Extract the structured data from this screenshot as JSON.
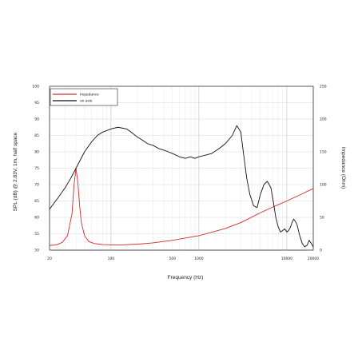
{
  "chart_data": {
    "type": "line",
    "xlabel": "Frequency (Hz)",
    "ylabel_left": "SPL (dB) @ 2.83V, 1m, half space",
    "ylabel_right": "Impedance (Ohm)",
    "x_scale": "log",
    "xlim": [
      20,
      20000
    ],
    "ylim_left": [
      50,
      100
    ],
    "ylim_right": [
      0,
      250
    ],
    "x_ticks": [
      {
        "value": 20,
        "label": "20"
      },
      {
        "value": 100,
        "label": "100"
      },
      {
        "value": 500,
        "label": "500"
      },
      {
        "value": 1000,
        "label": "1000"
      },
      {
        "value": 10000,
        "label": "10000"
      },
      {
        "value": 20000,
        "label": "20000"
      }
    ],
    "y_left_ticks": [
      "50",
      "55",
      "60",
      "65",
      "70",
      "75",
      "80",
      "85",
      "90",
      "95",
      "100"
    ],
    "y_right_ticks": [
      "0",
      "50",
      "100",
      "150",
      "200",
      "250"
    ],
    "grid": true,
    "legend_position": "top-left",
    "series_colors": {
      "impedance": "#d42a2a",
      "spl": "#111111"
    },
    "series": [
      {
        "name": "Impedance",
        "axis": "right",
        "x": [
          20,
          24,
          28,
          32,
          36,
          38,
          40,
          42,
          44,
          46,
          50,
          56,
          65,
          80,
          100,
          130,
          200,
          300,
          500,
          1000,
          2000,
          3000,
          5000,
          7000,
          10000,
          15000,
          20000
        ],
        "y": [
          7,
          8,
          12,
          22,
          55,
          100,
          125,
          103,
          68,
          42,
          22,
          13,
          10,
          8.5,
          8,
          8,
          9,
          11,
          15,
          22,
          33,
          42,
          57,
          66,
          75,
          86,
          94
        ]
      },
      {
        "name": "on axis",
        "axis": "left",
        "x": [
          20,
          22,
          25,
          30,
          35,
          40,
          50,
          60,
          70,
          80,
          90,
          100,
          120,
          150,
          170,
          200,
          230,
          260,
          300,
          350,
          400,
          450,
          500,
          600,
          700,
          800,
          900,
          1000,
          1200,
          1400,
          1700,
          2000,
          2400,
          2700,
          3000,
          3200,
          3500,
          3800,
          4200,
          4600,
          5000,
          5500,
          6000,
          6600,
          7000,
          7500,
          8000,
          8500,
          9000,
          9500,
          10000,
          10500,
          11000,
          11500,
          12000,
          13000,
          14000,
          15000,
          16000,
          17000,
          18000,
          19000,
          20000
        ],
        "y": [
          62.5,
          64,
          66,
          69,
          72,
          75,
          80,
          83,
          85,
          86,
          86.5,
          87,
          87.5,
          87,
          86,
          84.5,
          83.5,
          82.5,
          82,
          81,
          80.5,
          80,
          79.5,
          78.5,
          78,
          78.5,
          78,
          78.5,
          79,
          79.5,
          81,
          82.5,
          85,
          88,
          86,
          80,
          72,
          67,
          63.5,
          63,
          67,
          70,
          71,
          69,
          65,
          60,
          57,
          55.5,
          56,
          56.5,
          55.5,
          56,
          57,
          58.5,
          59.5,
          58,
          54.5,
          52,
          51,
          51.5,
          53,
          52,
          51
        ]
      }
    ]
  }
}
